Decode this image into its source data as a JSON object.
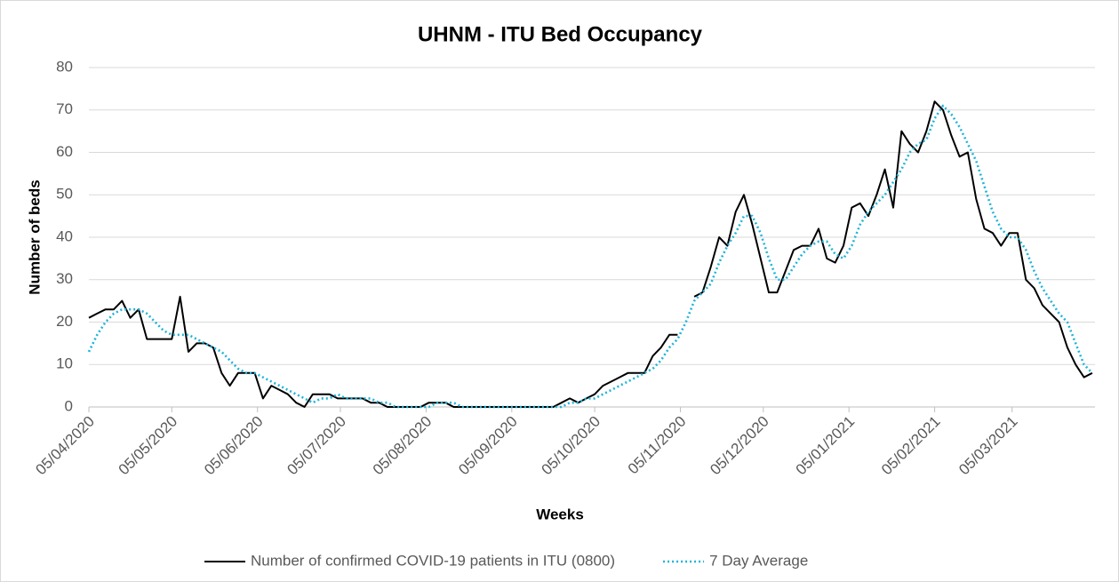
{
  "chart_data": {
    "type": "line",
    "title": "UHNM - ITU Bed Occupancy",
    "x_label": "Weeks",
    "y_label": "Number of beds",
    "x": [
      "05/04/2020",
      "08/04/2020",
      "11/04/2020",
      "14/04/2020",
      "17/04/2020",
      "20/04/2020",
      "23/04/2020",
      "26/04/2020",
      "29/04/2020",
      "02/05/2020",
      "05/05/2020",
      "08/05/2020",
      "11/05/2020",
      "14/05/2020",
      "17/05/2020",
      "20/05/2020",
      "23/05/2020",
      "26/05/2020",
      "29/05/2020",
      "01/06/2020",
      "04/06/2020",
      "07/06/2020",
      "10/06/2020",
      "13/06/2020",
      "16/06/2020",
      "19/06/2020",
      "22/06/2020",
      "25/06/2020",
      "28/06/2020",
      "01/07/2020",
      "04/07/2020",
      "07/07/2020",
      "10/07/2020",
      "13/07/2020",
      "16/07/2020",
      "19/07/2020",
      "22/07/2020",
      "25/07/2020",
      "28/07/2020",
      "31/07/2020",
      "03/08/2020",
      "06/08/2020",
      "09/08/2020",
      "12/08/2020",
      "15/08/2020",
      "18/08/2020",
      "21/08/2020",
      "24/08/2020",
      "27/08/2020",
      "30/08/2020",
      "02/09/2020",
      "05/09/2020",
      "08/09/2020",
      "11/09/2020",
      "14/09/2020",
      "17/09/2020",
      "20/09/2020",
      "23/09/2020",
      "26/09/2020",
      "29/09/2020",
      "02/10/2020",
      "05/10/2020",
      "08/10/2020",
      "11/10/2020",
      "14/10/2020",
      "17/10/2020",
      "20/10/2020",
      "23/10/2020",
      "26/10/2020",
      "29/10/2020",
      "01/11/2020",
      "04/11/2020",
      "07/11/2020",
      "10/11/2020",
      "13/11/2020",
      "16/11/2020",
      "19/11/2020",
      "22/11/2020",
      "25/11/2020",
      "28/11/2020",
      "01/12/2020",
      "04/12/2020",
      "07/12/2020",
      "10/12/2020",
      "13/12/2020",
      "16/12/2020",
      "19/12/2020",
      "22/12/2020",
      "25/12/2020",
      "28/12/2020",
      "31/12/2020",
      "03/01/2021",
      "06/01/2021",
      "09/01/2021",
      "12/01/2021",
      "15/01/2021",
      "18/01/2021",
      "21/01/2021",
      "24/01/2021",
      "27/01/2021",
      "30/01/2021",
      "02/02/2021",
      "05/02/2021",
      "08/02/2021",
      "11/02/2021",
      "14/02/2021",
      "17/02/2021",
      "20/02/2021",
      "23/02/2021",
      "26/02/2021",
      "01/03/2021",
      "04/03/2021",
      "07/03/2021",
      "10/03/2021",
      "13/03/2021",
      "16/03/2021",
      "19/03/2021",
      "22/03/2021",
      "25/03/2021",
      "28/03/2021",
      "31/03/2021",
      "03/04/2021"
    ],
    "series": [
      {
        "name": "Number of confirmed COVID-19 patients in ITU (0800)",
        "color": "#000000",
        "style": "solid",
        "values": [
          21,
          22,
          23,
          23,
          25,
          21,
          23,
          16,
          16,
          16,
          16,
          26,
          13,
          15,
          15,
          14,
          8,
          5,
          8,
          8,
          8,
          2,
          5,
          4,
          3,
          1,
          0,
          3,
          3,
          3,
          2,
          2,
          2,
          2,
          1,
          1,
          0,
          0,
          0,
          0,
          0,
          1,
          1,
          1,
          0,
          0,
          0,
          0,
          0,
          0,
          0,
          0,
          0,
          0,
          0,
          0,
          0,
          1,
          2,
          1,
          2,
          3,
          5,
          6,
          7,
          8,
          8,
          8,
          12,
          14,
          17,
          17,
          null,
          26,
          27,
          33,
          40,
          38,
          46,
          50,
          43,
          35,
          27,
          27,
          32,
          37,
          38,
          38,
          42,
          35,
          34,
          38,
          47,
          48,
          45,
          50,
          56,
          47,
          65,
          62,
          60,
          65,
          72,
          70,
          64,
          59,
          60,
          49,
          42,
          41,
          38,
          41,
          41,
          30,
          28,
          24,
          22,
          20,
          14,
          10,
          7,
          8
        ]
      },
      {
        "name": "7 Day Average",
        "color": "#1fb4d8",
        "style": "dotted",
        "values": [
          13,
          17,
          20,
          22,
          23,
          23,
          23,
          22,
          20,
          18,
          17,
          17,
          17,
          16,
          15,
          14,
          13,
          11,
          9,
          8,
          8,
          7,
          6,
          5,
          4,
          3,
          2,
          1,
          2,
          2,
          3,
          2,
          2,
          2,
          2,
          1,
          1,
          0,
          0,
          0,
          0,
          0,
          1,
          1,
          1,
          0,
          0,
          0,
          0,
          0,
          0,
          0,
          0,
          0,
          0,
          0,
          0,
          0,
          1,
          1,
          2,
          2,
          3,
          4,
          5,
          6,
          7,
          8,
          9,
          11,
          14,
          16,
          20,
          25,
          27,
          29,
          34,
          38,
          41,
          45,
          45,
          41,
          35,
          30,
          30,
          33,
          36,
          38,
          39,
          39,
          36,
          35,
          38,
          43,
          46,
          48,
          50,
          53,
          56,
          60,
          62,
          63,
          68,
          71,
          69,
          66,
          62,
          58,
          52,
          46,
          42,
          40,
          40,
          37,
          32,
          28,
          25,
          22,
          20,
          15,
          10,
          8
        ]
      }
    ],
    "xlim": [
      "05/04/2020",
      "04/04/2021"
    ],
    "xticks": [
      "05/04/2020",
      "05/05/2020",
      "05/06/2020",
      "05/07/2020",
      "05/08/2020",
      "05/09/2020",
      "05/10/2020",
      "05/11/2020",
      "05/12/2020",
      "05/01/2021",
      "05/02/2021",
      "05/03/2021"
    ],
    "ylim": [
      0,
      80
    ],
    "yticks": [
      0,
      10,
      20,
      30,
      40,
      50,
      60,
      70,
      80
    ],
    "grid": true,
    "legend": "bottom"
  }
}
